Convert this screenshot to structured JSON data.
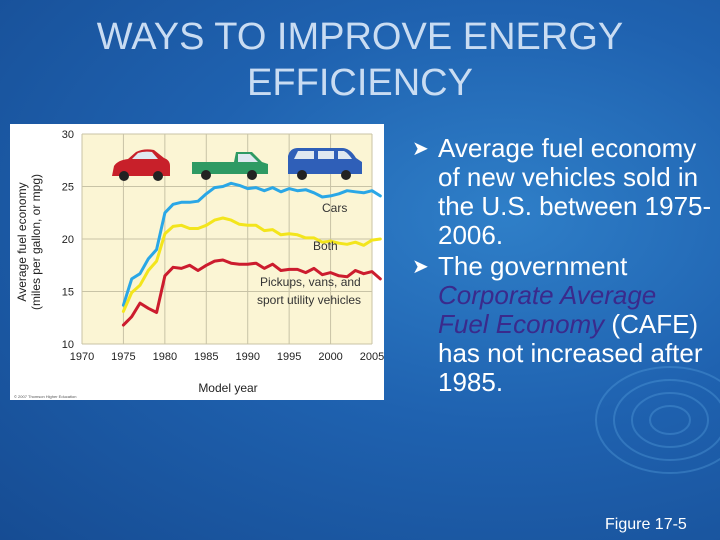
{
  "slide": {
    "title_line1": "WAYS TO IMPROVE ENERGY",
    "title_line2": "EFFICIENCY",
    "bullets": [
      {
        "text": "Average fuel economy of new vehicles sold in the U.S. between 1975-2006."
      },
      {
        "pre": "The government ",
        "emph": "Corporate Average Fuel Economy",
        "post": " (CAFE) has not increased after 1985."
      }
    ],
    "figure_label": "Figure 17-5"
  },
  "colors": {
    "cars": "#2aa7e6",
    "both": "#f3e51c",
    "trucks": "#cc1c2e",
    "plot_bg": "#fbf5d4",
    "grid": "#c8c3a6"
  },
  "chart_data": {
    "type": "line",
    "title": "",
    "xlabel": "Model year",
    "ylabel": "Average fuel economy (miles per gallon, or mpg)",
    "ylabel_line1": "Average fuel economy",
    "ylabel_line2": "(miles per gallon, or mpg)",
    "xlim": [
      1970,
      2005
    ],
    "ylim": [
      10,
      30
    ],
    "xticks": [
      1970,
      1975,
      1980,
      1985,
      1990,
      1995,
      2000,
      2005
    ],
    "yticks": [
      10,
      15,
      20,
      25,
      30
    ],
    "grid": true,
    "credit": "© 2007 Thomson Higher Education",
    "annotations": [
      {
        "text": "Cars",
        "series": "cars"
      },
      {
        "text": "Both",
        "series": "both"
      },
      {
        "text": "Pickups, vans, and",
        "series": "trucks"
      },
      {
        "text": "sport utility vehicles",
        "series": "trucks"
      }
    ],
    "series": [
      {
        "id": "cars",
        "x": [
          1975,
          1976,
          1977,
          1978,
          1979,
          1980,
          1981,
          1982,
          1983,
          1984,
          1985,
          1986,
          1987,
          1988,
          1989,
          1990,
          1991,
          1992,
          1993,
          1994,
          1995,
          1996,
          1997,
          1998,
          1999,
          2000,
          2001,
          2002,
          2003,
          2004,
          2005,
          2006
        ],
        "y": [
          13.7,
          16.2,
          16.7,
          18.1,
          19.0,
          22.5,
          23.3,
          23.5,
          23.5,
          23.6,
          24.3,
          24.9,
          25.0,
          25.3,
          25.1,
          24.8,
          24.9,
          24.6,
          24.9,
          24.5,
          24.8,
          24.6,
          24.7,
          24.4,
          24.0,
          24.1,
          24.3,
          24.6,
          24.5,
          24.4,
          24.6,
          24.1
        ]
      },
      {
        "id": "both",
        "x": [
          1975,
          1976,
          1977,
          1978,
          1979,
          1980,
          1981,
          1982,
          1983,
          1984,
          1985,
          1986,
          1987,
          1988,
          1989,
          1990,
          1991,
          1992,
          1993,
          1994,
          1995,
          1996,
          1997,
          1998,
          1999,
          2000,
          2001,
          2002,
          2003,
          2004,
          2005,
          2006
        ],
        "y": [
          13.1,
          14.9,
          15.6,
          17.0,
          17.9,
          20.5,
          21.2,
          21.3,
          21.0,
          21.0,
          21.3,
          21.8,
          22.0,
          21.8,
          21.4,
          21.3,
          21.3,
          20.8,
          20.9,
          20.4,
          20.5,
          20.4,
          20.1,
          20.1,
          19.7,
          19.8,
          19.6,
          19.5,
          19.7,
          19.4,
          19.9,
          20.0
        ]
      },
      {
        "id": "trucks",
        "x": [
          1975,
          1976,
          1977,
          1978,
          1979,
          1980,
          1981,
          1982,
          1983,
          1984,
          1985,
          1986,
          1987,
          1988,
          1989,
          1990,
          1991,
          1992,
          1993,
          1994,
          1995,
          1996,
          1997,
          1998,
          1999,
          2000,
          2001,
          2002,
          2003,
          2004,
          2005,
          2006
        ],
        "y": [
          11.8,
          12.6,
          13.9,
          13.4,
          13.0,
          16.5,
          17.3,
          17.2,
          17.5,
          17.0,
          17.5,
          17.9,
          18.0,
          17.7,
          17.6,
          17.6,
          17.7,
          17.2,
          17.6,
          17.0,
          17.1,
          17.1,
          16.8,
          17.2,
          16.6,
          16.8,
          16.5,
          16.4,
          17.0,
          16.7,
          16.9,
          16.2
        ]
      }
    ]
  }
}
